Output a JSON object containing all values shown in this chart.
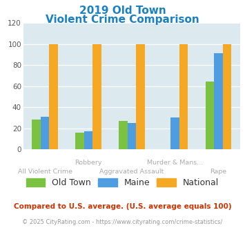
{
  "title_line1": "2019 Old Town",
  "title_line2": "Violent Crime Comparison",
  "categories": [
    "All Violent Crime",
    "Robbery",
    "Aggravated Assault",
    "Murder & Mans...",
    "Rape"
  ],
  "cat_top": [
    "",
    "Robbery",
    "",
    "Murder & Mans...",
    ""
  ],
  "cat_bot": [
    "All Violent Crime",
    "",
    "Aggravated Assault",
    "",
    "Rape"
  ],
  "series": {
    "Old Town": [
      28,
      16,
      27,
      0,
      64
    ],
    "Maine": [
      31,
      17,
      25,
      30,
      91
    ],
    "National": [
      100,
      100,
      100,
      100,
      100
    ]
  },
  "colors": {
    "Old Town": "#7bc142",
    "Maine": "#4d9de0",
    "National": "#f5a823"
  },
  "ylim": [
    0,
    120
  ],
  "yticks": [
    0,
    20,
    40,
    60,
    80,
    100,
    120
  ],
  "plot_bg": "#dce9ef",
  "title_color": "#1a80c4",
  "footnote1": "Compared to U.S. average. (U.S. average equals 100)",
  "footnote2": "© 2025 CityRating.com - https://www.cityrating.com/crime-statistics/",
  "footnote1_color": "#cc3300",
  "footnote2_color": "#999999",
  "label_color": "#aaaaaa"
}
